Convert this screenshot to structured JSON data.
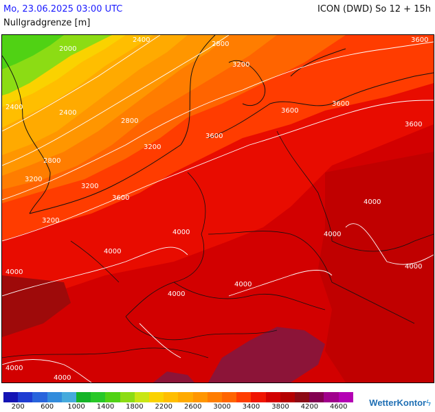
{
  "header": {
    "datetime": "Mo, 23.06.2025 03:00 UTC",
    "variable": "Nullgradgrenze [m]",
    "model": "ICON (DWD) So 12 + 15h"
  },
  "legend": {
    "colors": [
      "#1414b4",
      "#1e3cd2",
      "#2864dc",
      "#328cdc",
      "#46aadc",
      "#14b428",
      "#28c828",
      "#50d214",
      "#8cdc14",
      "#c8e614",
      "#fad200",
      "#ffbe00",
      "#ffaa00",
      "#ff9600",
      "#ff7d00",
      "#ff6400",
      "#ff3c00",
      "#f01400",
      "#d20000",
      "#b40000",
      "#8c0a14",
      "#820050",
      "#a0008c",
      "#b400b4"
    ],
    "ticks": [
      "200",
      "600",
      "1000",
      "1400",
      "1800",
      "2200",
      "2600",
      "3000",
      "3400",
      "3800",
      "4200",
      "4600"
    ]
  },
  "map_labels": [
    "2000",
    "2400",
    "2800",
    "3200",
    "3600",
    "4000",
    "4000",
    "2400",
    "2400",
    "2800",
    "3200",
    "3600",
    "2800",
    "3200",
    "3600",
    "3600",
    "3600",
    "4000",
    "4000",
    "4000",
    "4000",
    "4000",
    "4000",
    "4000",
    "4000",
    "3600",
    "3200",
    "3200"
  ],
  "brand": "WetterKontor"
}
